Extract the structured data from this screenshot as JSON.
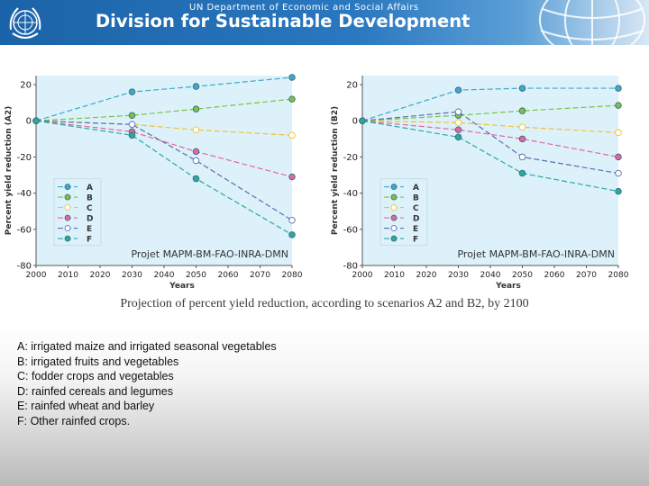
{
  "header": {
    "department": "UN Department of Economic and Social Affairs",
    "title": "Division for Sustainable Development"
  },
  "caption": "Projection of percent yield reduction, according to scenarios A2 and B2, by 2100",
  "notes": [
    "A: irrigated maize and irrigated seasonal vegetables",
    "B: irrigated fruits and vegetables",
    "C: fodder crops and vegetables",
    "D: rainfed cereals and legumes",
    "E: rainfed wheat and barley",
    "F: Other rainfed crops."
  ],
  "chart_data": [
    {
      "type": "line",
      "ylabel": "Percent yield reduction (A2)",
      "xlabel": "Years",
      "source": "Projet MAPM-BM-FAO-INRA-DMN",
      "xlim": [
        2000,
        2080
      ],
      "ylim": [
        -80,
        25
      ],
      "xticks": [
        2000,
        2010,
        2020,
        2030,
        2040,
        2050,
        2060,
        2070,
        2080
      ],
      "yticks": [
        20,
        0,
        -20,
        -40,
        -60,
        -80
      ],
      "grid": false,
      "legend_position": "bottom-left",
      "x": [
        2000,
        2030,
        2050,
        2080
      ],
      "series": [
        {
          "name": "A",
          "color": "#3fa7c9",
          "values": [
            0,
            16,
            19,
            24
          ]
        },
        {
          "name": "B",
          "color": "#7cc241",
          "values": [
            0,
            3,
            6.5,
            12
          ]
        },
        {
          "name": "C",
          "color": "#f2c12e",
          "values": [
            0,
            -2,
            -5,
            -8
          ]
        },
        {
          "name": "D",
          "color": "#e3679c",
          "values": [
            0,
            -6,
            -17,
            -31
          ]
        },
        {
          "name": "E",
          "color": "#5a6fb0",
          "values": [
            0,
            -2,
            -22,
            -55
          ]
        },
        {
          "name": "F",
          "color": "#2aa9a0",
          "values": [
            0,
            -8,
            -32,
            -63
          ]
        }
      ]
    },
    {
      "type": "line",
      "ylabel": "Percent yield reduction (B2)",
      "xlabel": "Years",
      "source": "Projet MAPM-BM-FAO-INRA-DMN",
      "xlim": [
        2000,
        2080
      ],
      "ylim": [
        -80,
        25
      ],
      "xticks": [
        2000,
        2010,
        2020,
        2030,
        2040,
        2050,
        2060,
        2070,
        2080
      ],
      "yticks": [
        20,
        0,
        -20,
        -40,
        -60,
        -80
      ],
      "grid": false,
      "legend_position": "bottom-left",
      "x": [
        2000,
        2030,
        2050,
        2080
      ],
      "series": [
        {
          "name": "A",
          "color": "#3fa7c9",
          "values": [
            0,
            17,
            18,
            18
          ]
        },
        {
          "name": "B",
          "color": "#7cc241",
          "values": [
            0,
            3,
            5.5,
            8.5
          ]
        },
        {
          "name": "C",
          "color": "#f2c12e",
          "values": [
            0,
            -1,
            -3.5,
            -6.5
          ]
        },
        {
          "name": "D",
          "color": "#e3679c",
          "values": [
            0,
            -5,
            -10,
            -20
          ]
        },
        {
          "name": "E",
          "color": "#5a6fb0",
          "values": [
            0,
            5,
            -20,
            -29
          ]
        },
        {
          "name": "F",
          "color": "#2aa9a0",
          "values": [
            0,
            -9,
            -29,
            -39
          ]
        }
      ]
    }
  ]
}
